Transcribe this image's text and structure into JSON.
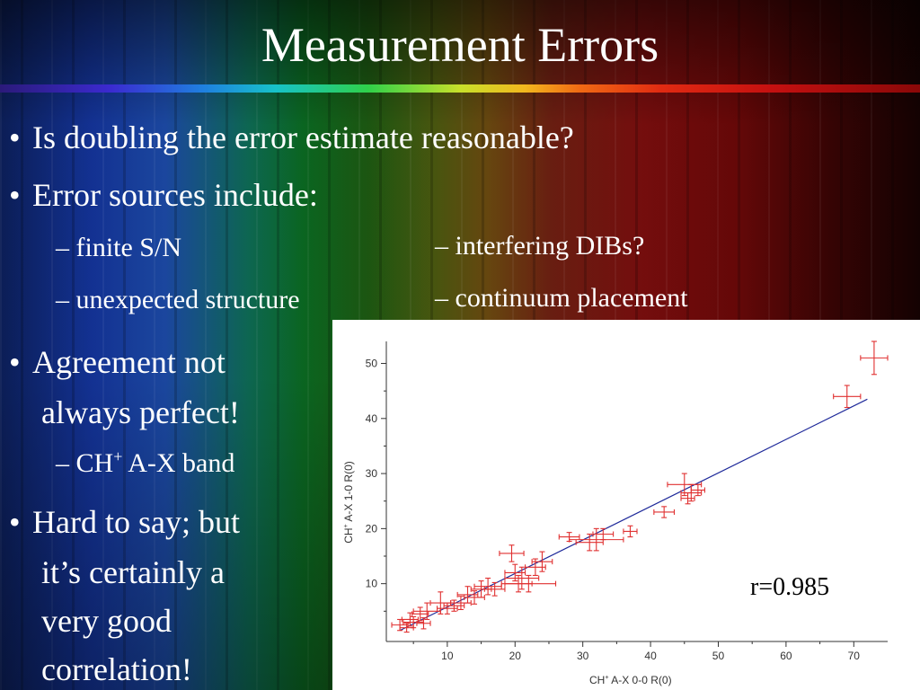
{
  "slide": {
    "title": "Measurement Errors",
    "bullet_1": "Is doubling the error estimate reasonable?",
    "bullet_2": "Error sources include:",
    "sub_left_1": "– finite S/N",
    "sub_left_2": "– unexpected structure",
    "sub_right_1": "– interfering DIBs?",
    "sub_right_2": "– continuum placement",
    "bullet_3_line1": "Agreement not",
    "bullet_3_line2": "always perfect!",
    "sub_ch_prefix": "– CH",
    "sub_ch_sup": "+",
    "sub_ch_suffix": " A-X band",
    "bullet_4_line1": "Hard to say; but",
    "bullet_4_line2": "it’s certainly a",
    "bullet_4_line3": "very good",
    "bullet_4_line4": "correlation!",
    "bullet_symbol": "•"
  },
  "chart_data": {
    "type": "scatter",
    "xlabel_prefix": "CH",
    "xlabel_sup": "+",
    "xlabel_suffix": " A-X 0-0 R(0)",
    "ylabel_prefix": "CH",
    "ylabel_sup": "+",
    "ylabel_suffix": " A-X 1-0 R(0)",
    "xlim": [
      1,
      75
    ],
    "ylim": [
      -0.5,
      54
    ],
    "x_ticks": [
      10,
      20,
      30,
      40,
      50,
      60,
      70
    ],
    "y_ticks": [
      10,
      20,
      30,
      40,
      50
    ],
    "annotation": "r=0.985",
    "marker_color": "#e03030",
    "fit_color": "#1f2a9a",
    "fit_line": {
      "x": [
        3,
        72
      ],
      "y": [
        1.5,
        43.5
      ]
    },
    "points": [
      {
        "x": 3,
        "y": 2.5,
        "xe": 1.2,
        "ye": 1.0
      },
      {
        "x": 4,
        "y": 2.0,
        "xe": 1.0,
        "ye": 0.8
      },
      {
        "x": 4.5,
        "y": 3.5,
        "xe": 1.2,
        "ye": 1.2
      },
      {
        "x": 5,
        "y": 3.0,
        "xe": 1.5,
        "ye": 1.0
      },
      {
        "x": 6,
        "y": 4.5,
        "xe": 1.2,
        "ye": 1.2
      },
      {
        "x": 6.5,
        "y": 2.8,
        "xe": 1.0,
        "ye": 1.0
      },
      {
        "x": 7,
        "y": 5.0,
        "xe": 2.0,
        "ye": 1.5
      },
      {
        "x": 9,
        "y": 6.5,
        "xe": 1.5,
        "ye": 2.0
      },
      {
        "x": 10,
        "y": 5.5,
        "xe": 1.5,
        "ye": 1.0
      },
      {
        "x": 11,
        "y": 6.0,
        "xe": 1.5,
        "ye": 1.0
      },
      {
        "x": 12,
        "y": 6.5,
        "xe": 1.5,
        "ye": 1.2
      },
      {
        "x": 13,
        "y": 8.0,
        "xe": 1.5,
        "ye": 1.5
      },
      {
        "x": 14,
        "y": 7.5,
        "xe": 1.5,
        "ye": 1.2
      },
      {
        "x": 15,
        "y": 9.0,
        "xe": 1.5,
        "ye": 1.5
      },
      {
        "x": 16,
        "y": 9.5,
        "xe": 2.0,
        "ye": 1.5
      },
      {
        "x": 17,
        "y": 9.0,
        "xe": 1.5,
        "ye": 1.2
      },
      {
        "x": 19.5,
        "y": 15.5,
        "xe": 1.8,
        "ye": 1.5
      },
      {
        "x": 20,
        "y": 12.0,
        "xe": 1.5,
        "ye": 1.5
      },
      {
        "x": 20.5,
        "y": 10.0,
        "xe": 2.0,
        "ye": 1.5
      },
      {
        "x": 21,
        "y": 11.0,
        "xe": 2.5,
        "ye": 2.0
      },
      {
        "x": 22,
        "y": 10.0,
        "xe": 4.0,
        "ye": 1.5
      },
      {
        "x": 23,
        "y": 13.0,
        "xe": 1.5,
        "ye": 1.5
      },
      {
        "x": 24,
        "y": 14.0,
        "xe": 1.5,
        "ye": 1.8
      },
      {
        "x": 28,
        "y": 18.5,
        "xe": 1.5,
        "ye": 0.8
      },
      {
        "x": 31,
        "y": 17.5,
        "xe": 2.0,
        "ye": 1.5
      },
      {
        "x": 32,
        "y": 18.0,
        "xe": 4.0,
        "ye": 2.0
      },
      {
        "x": 33,
        "y": 19.0,
        "xe": 1.5,
        "ye": 1.0
      },
      {
        "x": 37,
        "y": 19.5,
        "xe": 1.0,
        "ye": 1.0
      },
      {
        "x": 42,
        "y": 23.0,
        "xe": 1.5,
        "ye": 1.0
      },
      {
        "x": 45,
        "y": 28.0,
        "xe": 2.5,
        "ye": 2.0
      },
      {
        "x": 45.5,
        "y": 25.5,
        "xe": 1.0,
        "ye": 1.0
      },
      {
        "x": 46,
        "y": 26.5,
        "xe": 1.5,
        "ye": 1.5
      },
      {
        "x": 47,
        "y": 27.0,
        "xe": 1.0,
        "ye": 1.0
      },
      {
        "x": 69,
        "y": 44.0,
        "xe": 2.0,
        "ye": 2.0
      },
      {
        "x": 73,
        "y": 51.0,
        "xe": 2.0,
        "ye": 3.0
      }
    ]
  }
}
